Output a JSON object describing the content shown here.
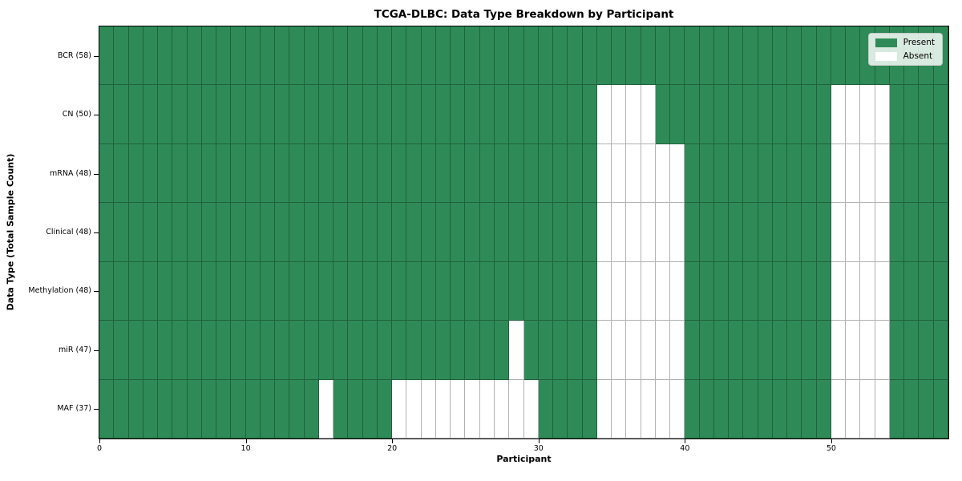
{
  "title": "TCGA-DLBC: Data Type Breakdown by Participant",
  "xlabel": "Participant",
  "ylabel": "Data Type (Total Sample Count)",
  "legend": {
    "present_label": "Present",
    "absent_label": "Absent"
  },
  "colors": {
    "present": "#2E8B57",
    "absent": "#FFFFFF",
    "grid_line": "rgba(0,0,0,0.30)",
    "frame": "#000000",
    "legend_background": "rgba(255,255,255,0.82)"
  },
  "chart_data": {
    "type": "heatmap",
    "title": "TCGA-DLBC: Data Type Breakdown by Participant",
    "xlabel": "Participant",
    "ylabel": "Data Type (Total Sample Count)",
    "legend": [
      "Present",
      "Absent"
    ],
    "legend_position": "upper right",
    "grid": "cell borders, semi-transparent black",
    "participant_count": 58,
    "x_range": [
      0,
      58
    ],
    "x_ticks": [
      0,
      10,
      20,
      30,
      40,
      50
    ],
    "value_encoding": {
      "present": 1,
      "absent": 0
    },
    "rows": [
      {
        "label": "BCR (58)",
        "data_type": "BCR",
        "total_sample_count": 58,
        "absent_participants": []
      },
      {
        "label": "CN (50)",
        "data_type": "CN",
        "total_sample_count": 50,
        "absent_participants": [
          34,
          35,
          36,
          37,
          50,
          51,
          52,
          53
        ]
      },
      {
        "label": "mRNA (48)",
        "data_type": "mRNA",
        "total_sample_count": 48,
        "absent_participants": [
          34,
          35,
          36,
          37,
          38,
          39,
          50,
          51,
          52,
          53
        ]
      },
      {
        "label": "Clinical (48)",
        "data_type": "Clinical",
        "total_sample_count": 48,
        "absent_participants": [
          34,
          35,
          36,
          37,
          38,
          39,
          50,
          51,
          52,
          53
        ]
      },
      {
        "label": "Methylation (48)",
        "data_type": "Methylation",
        "total_sample_count": 48,
        "absent_participants": [
          34,
          35,
          36,
          37,
          38,
          39,
          50,
          51,
          52,
          53
        ]
      },
      {
        "label": "miR (47)",
        "data_type": "miR",
        "total_sample_count": 47,
        "absent_participants": [
          28,
          34,
          35,
          36,
          37,
          38,
          39,
          50,
          51,
          52,
          53
        ]
      },
      {
        "label": "MAF (37)",
        "data_type": "MAF",
        "total_sample_count": 37,
        "absent_participants": [
          15,
          20,
          21,
          22,
          23,
          24,
          25,
          26,
          27,
          28,
          29,
          34,
          35,
          36,
          37,
          38,
          39,
          50,
          51,
          52,
          53
        ]
      }
    ]
  }
}
